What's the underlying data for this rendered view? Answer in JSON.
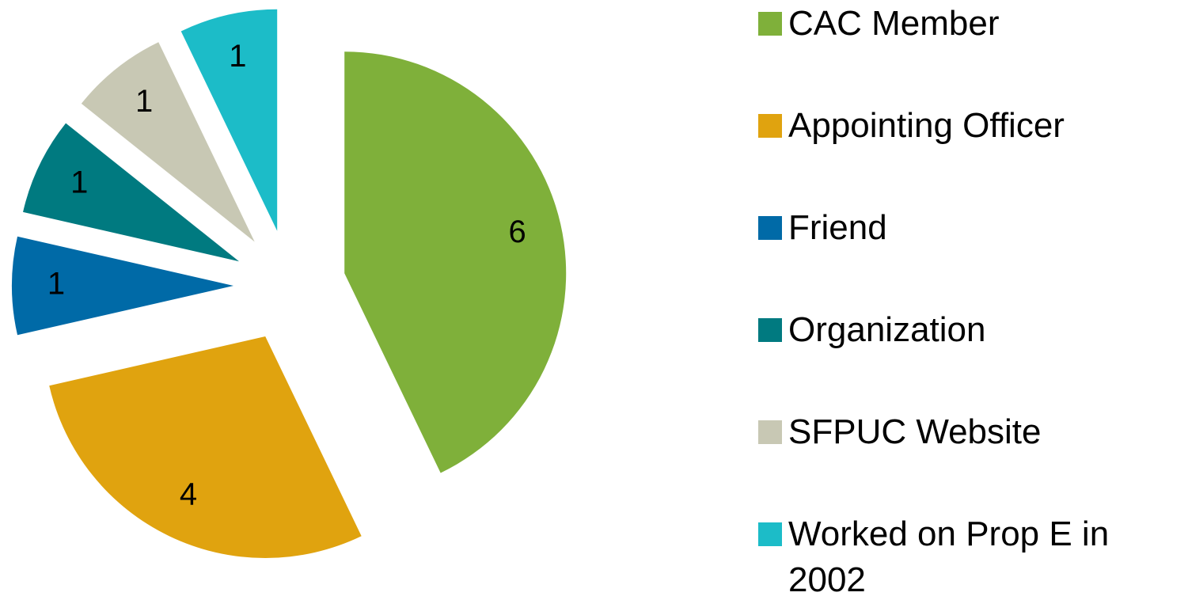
{
  "chart_data": {
    "type": "pie",
    "categories": [
      "CAC Member",
      "Appointing Officer",
      "Friend",
      "Organization",
      "SFPUC Website",
      "Worked on Prop E in 2002"
    ],
    "values": [
      6,
      4,
      1,
      1,
      1,
      1
    ],
    "colors": [
      "#7fb03a",
      "#e0a30f",
      "#006aa7",
      "#007a80",
      "#c8c8b4",
      "#1cbcc8"
    ],
    "legend": "right"
  }
}
